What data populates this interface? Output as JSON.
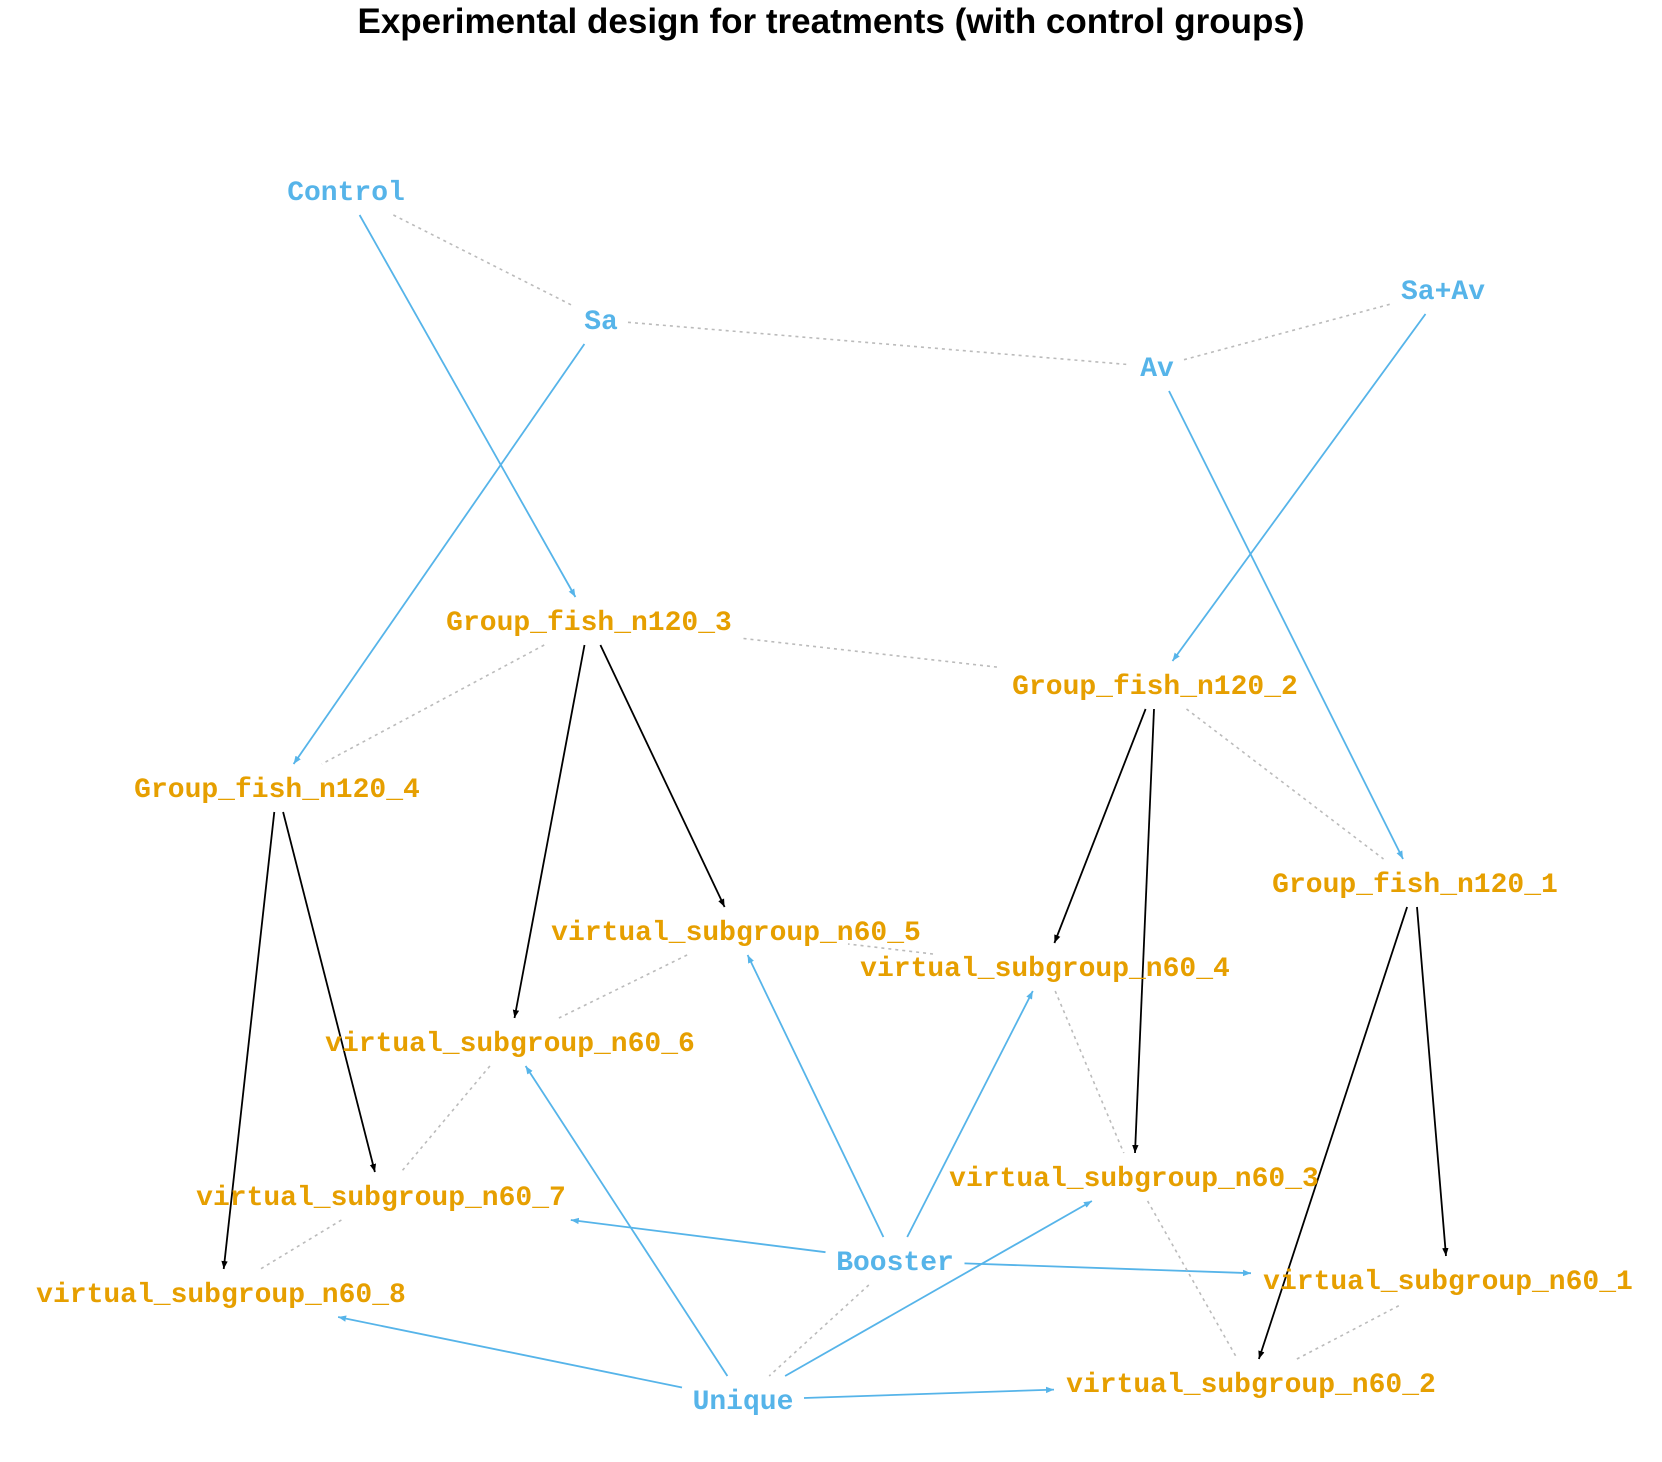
{
  "title": "Experimental design for treatments (with control groups)",
  "colors": {
    "treatment": "#56B4E9",
    "group": "#E69F00",
    "arrow": "#000000",
    "dotted": "#BBBBBB"
  },
  "nodes": [
    {
      "id": "control",
      "label": "Control",
      "kind": "treatment"
    },
    {
      "id": "sa",
      "label": "Sa",
      "kind": "treatment"
    },
    {
      "id": "av",
      "label": "Av",
      "kind": "treatment"
    },
    {
      "id": "saav",
      "label": "Sa+Av",
      "kind": "treatment"
    },
    {
      "id": "booster",
      "label": "Booster",
      "kind": "treatment"
    },
    {
      "id": "unique",
      "label": "Unique",
      "kind": "treatment"
    },
    {
      "id": "g1",
      "label": "Group_fish_n120_1",
      "kind": "group"
    },
    {
      "id": "g2",
      "label": "Group_fish_n120_2",
      "kind": "group"
    },
    {
      "id": "g3",
      "label": "Group_fish_n120_3",
      "kind": "group"
    },
    {
      "id": "g4",
      "label": "Group_fish_n120_4",
      "kind": "group"
    },
    {
      "id": "v1",
      "label": "virtual_subgroup_n60_1",
      "kind": "group"
    },
    {
      "id": "v2",
      "label": "virtual_subgroup_n60_2",
      "kind": "group"
    },
    {
      "id": "v3",
      "label": "virtual_subgroup_n60_3",
      "kind": "group"
    },
    {
      "id": "v4",
      "label": "virtual_subgroup_n60_4",
      "kind": "group"
    },
    {
      "id": "v5",
      "label": "virtual_subgroup_n60_5",
      "kind": "group"
    },
    {
      "id": "v6",
      "label": "virtual_subgroup_n60_6",
      "kind": "group"
    },
    {
      "id": "v7",
      "label": "virtual_subgroup_n60_7",
      "kind": "group"
    },
    {
      "id": "v8",
      "label": "virtual_subgroup_n60_8",
      "kind": "group"
    }
  ],
  "edges": [
    {
      "from": "control",
      "to": "g3",
      "style": "treatment"
    },
    {
      "from": "sa",
      "to": "g4",
      "style": "treatment"
    },
    {
      "from": "av",
      "to": "g1",
      "style": "treatment"
    },
    {
      "from": "saav",
      "to": "g2",
      "style": "treatment"
    },
    {
      "from": "booster",
      "to": "v5",
      "style": "treatment"
    },
    {
      "from": "booster",
      "to": "v4",
      "style": "treatment"
    },
    {
      "from": "booster",
      "to": "v7",
      "style": "treatment"
    },
    {
      "from": "booster",
      "to": "v1",
      "style": "treatment"
    },
    {
      "from": "unique",
      "to": "v6",
      "style": "treatment"
    },
    {
      "from": "unique",
      "to": "v3",
      "style": "treatment"
    },
    {
      "from": "unique",
      "to": "v8",
      "style": "treatment"
    },
    {
      "from": "unique",
      "to": "v2",
      "style": "treatment"
    },
    {
      "from": "g3",
      "to": "v6",
      "style": "split"
    },
    {
      "from": "g3",
      "to": "v5",
      "style": "split"
    },
    {
      "from": "g2",
      "to": "v4",
      "style": "split"
    },
    {
      "from": "g2",
      "to": "v3",
      "style": "split"
    },
    {
      "from": "g4",
      "to": "v8",
      "style": "split"
    },
    {
      "from": "g4",
      "to": "v7",
      "style": "split"
    },
    {
      "from": "g1",
      "to": "v2",
      "style": "split"
    },
    {
      "from": "g1",
      "to": "v1",
      "style": "split"
    },
    {
      "from": "control",
      "to": "sa",
      "style": "dotted"
    },
    {
      "from": "sa",
      "to": "av",
      "style": "dotted"
    },
    {
      "from": "av",
      "to": "saav",
      "style": "dotted"
    },
    {
      "from": "g3",
      "to": "g2",
      "style": "dotted"
    },
    {
      "from": "g3",
      "to": "g4",
      "style": "dotted"
    },
    {
      "from": "g2",
      "to": "g1",
      "style": "dotted"
    },
    {
      "from": "v5",
      "to": "v4",
      "style": "dotted"
    },
    {
      "from": "v5",
      "to": "v6",
      "style": "dotted"
    },
    {
      "from": "v6",
      "to": "v7",
      "style": "dotted"
    },
    {
      "from": "v7",
      "to": "v8",
      "style": "dotted"
    },
    {
      "from": "v4",
      "to": "v3",
      "style": "dotted"
    },
    {
      "from": "v3",
      "to": "v2",
      "style": "dotted"
    },
    {
      "from": "v2",
      "to": "v1",
      "style": "dotted"
    },
    {
      "from": "booster",
      "to": "unique",
      "style": "dotted"
    }
  ]
}
